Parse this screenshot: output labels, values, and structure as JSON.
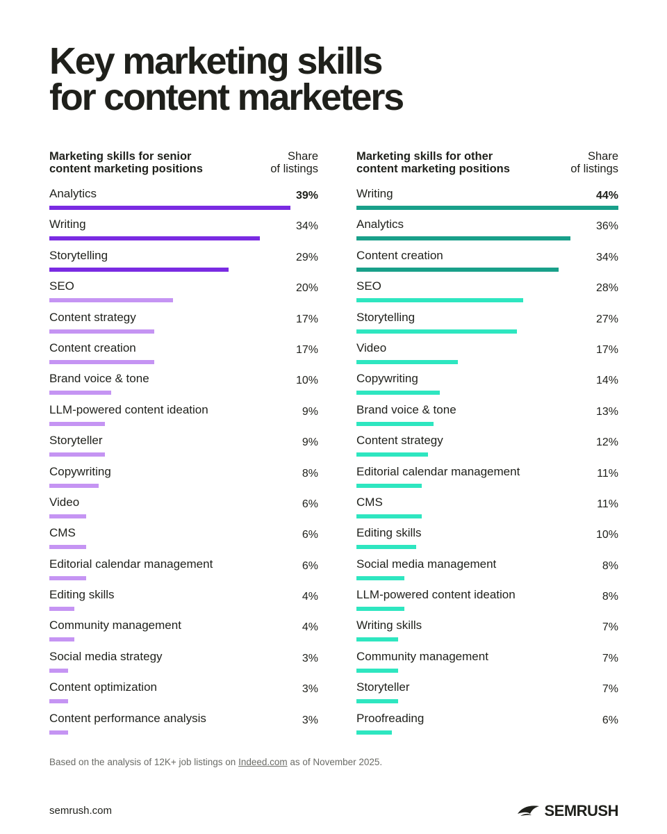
{
  "title_line1": "Key marketing skills",
  "title_line2": "for content marketers",
  "colors": {
    "left_top": "#7a2be2",
    "left_rest": "#c594f3",
    "right_top": "#19a08a",
    "right_rest": "#2ee6c0"
  },
  "chart_data": [
    {
      "type": "bar",
      "orientation": "horizontal",
      "title_line1": "Marketing skills for senior",
      "title_line2": "content marketing positions",
      "value_header_line1": "Share",
      "value_header_line2": "of listings",
      "xlim": [
        0,
        39
      ],
      "highlight_top_n": 3,
      "items": [
        {
          "label": "Analytics",
          "value": 39,
          "display": "39%"
        },
        {
          "label": "Writing",
          "value": 34,
          "display": "34%"
        },
        {
          "label": "Storytelling",
          "value": 29,
          "display": "29%"
        },
        {
          "label": "SEO",
          "value": 20,
          "display": "20%"
        },
        {
          "label": "Content strategy",
          "value": 17,
          "display": "17%"
        },
        {
          "label": "Content creation",
          "value": 17,
          "display": "17%"
        },
        {
          "label": "Brand voice & tone",
          "value": 10,
          "display": "10%"
        },
        {
          "label": "LLM-powered content ideation",
          "value": 9,
          "display": "9%"
        },
        {
          "label": "Storyteller",
          "value": 9,
          "display": "9%"
        },
        {
          "label": "Copywriting",
          "value": 8,
          "display": "8%"
        },
        {
          "label": "Video",
          "value": 6,
          "display": "6%"
        },
        {
          "label": "CMS",
          "value": 6,
          "display": "6%"
        },
        {
          "label": "Editorial calendar management",
          "value": 6,
          "display": "6%"
        },
        {
          "label": "Editing skills",
          "value": 4,
          "display": "4%"
        },
        {
          "label": "Community management",
          "value": 4,
          "display": "4%"
        },
        {
          "label": "Social media strategy",
          "value": 3,
          "display": "3%"
        },
        {
          "label": "Content optimization",
          "value": 3,
          "display": "3%"
        },
        {
          "label": "Content performance analysis",
          "value": 3,
          "display": "3%"
        }
      ]
    },
    {
      "type": "bar",
      "orientation": "horizontal",
      "title_line1": "Marketing skills for other",
      "title_line2": "content marketing positions",
      "value_header_line1": "Share",
      "value_header_line2": "of listings",
      "xlim": [
        0,
        44
      ],
      "highlight_top_n": 3,
      "items": [
        {
          "label": "Writing",
          "value": 44,
          "display": "44%"
        },
        {
          "label": "Analytics",
          "value": 36,
          "display": "36%"
        },
        {
          "label": "Content creation",
          "value": 34,
          "display": "34%"
        },
        {
          "label": "SEO",
          "value": 28,
          "display": "28%"
        },
        {
          "label": "Storytelling",
          "value": 27,
          "display": "27%"
        },
        {
          "label": "Video",
          "value": 17,
          "display": "17%"
        },
        {
          "label": "Copywriting",
          "value": 14,
          "display": "14%"
        },
        {
          "label": "Brand voice & tone",
          "value": 13,
          "display": "13%"
        },
        {
          "label": "Content strategy",
          "value": 12,
          "display": "12%"
        },
        {
          "label": "Editorial calendar management",
          "value": 11,
          "display": "11%"
        },
        {
          "label": "CMS",
          "value": 11,
          "display": "11%"
        },
        {
          "label": "Editing skills",
          "value": 10,
          "display": "10%"
        },
        {
          "label": "Social media management",
          "value": 8,
          "display": "8%"
        },
        {
          "label": "LLM-powered content ideation",
          "value": 8,
          "display": "8%"
        },
        {
          "label": "Writing skills",
          "value": 7,
          "display": "7%"
        },
        {
          "label": "Community management",
          "value": 7,
          "display": "7%"
        },
        {
          "label": "Storyteller",
          "value": 7,
          "display": "7%"
        },
        {
          "label": "Proofreading",
          "value": 6,
          "display": "6%"
        }
      ]
    }
  ],
  "footnote": {
    "prefix": "Based on the analysis of 12K+ job listings on ",
    "link": "Indeed.com",
    "suffix": " as of November 2025."
  },
  "footer": {
    "site": "semrush.com",
    "brand": "SEMRUSH",
    "brand_icon": "semrush-flame-icon"
  }
}
